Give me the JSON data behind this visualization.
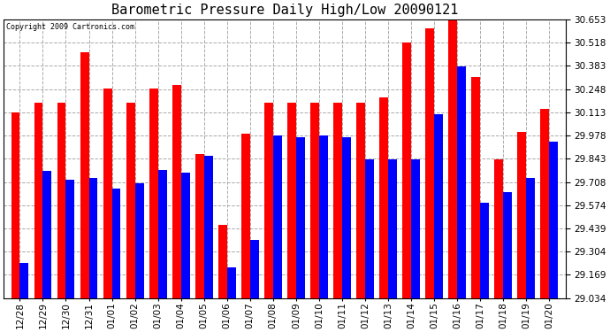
{
  "title": "Barometric Pressure Daily High/Low 20090121",
  "copyright": "Copyright 2009 Cartronics.com",
  "dates": [
    "12/28",
    "12/29",
    "12/30",
    "12/31",
    "01/01",
    "01/02",
    "01/03",
    "01/04",
    "01/05",
    "01/06",
    "01/07",
    "01/08",
    "01/09",
    "01/10",
    "01/11",
    "01/12",
    "01/13",
    "01/14",
    "01/15",
    "01/16",
    "01/17",
    "01/18",
    "01/19",
    "01/20"
  ],
  "highs": [
    30.11,
    30.17,
    30.17,
    30.46,
    30.25,
    30.17,
    30.25,
    30.27,
    29.87,
    29.46,
    29.99,
    30.17,
    30.17,
    30.17,
    30.17,
    30.17,
    30.2,
    30.52,
    30.6,
    30.65,
    30.32,
    29.84,
    30.0,
    30.13
  ],
  "lows": [
    29.24,
    29.77,
    29.72,
    29.73,
    29.67,
    29.7,
    29.78,
    29.76,
    29.86,
    29.21,
    29.37,
    29.98,
    29.97,
    29.98,
    29.97,
    29.84,
    29.84,
    29.84,
    30.1,
    30.38,
    29.59,
    29.65,
    29.73,
    29.94
  ],
  "ymin": 29.034,
  "ymax": 30.653,
  "yticks": [
    29.034,
    29.169,
    29.304,
    29.439,
    29.574,
    29.708,
    29.843,
    29.978,
    30.113,
    30.248,
    30.383,
    30.518,
    30.653
  ],
  "high_color": "#ff0000",
  "low_color": "#0000ff",
  "bg_color": "#ffffff",
  "grid_color": "#aaaaaa",
  "title_fontsize": 11,
  "bar_width": 0.38,
  "fig_width": 6.9,
  "fig_height": 3.75
}
